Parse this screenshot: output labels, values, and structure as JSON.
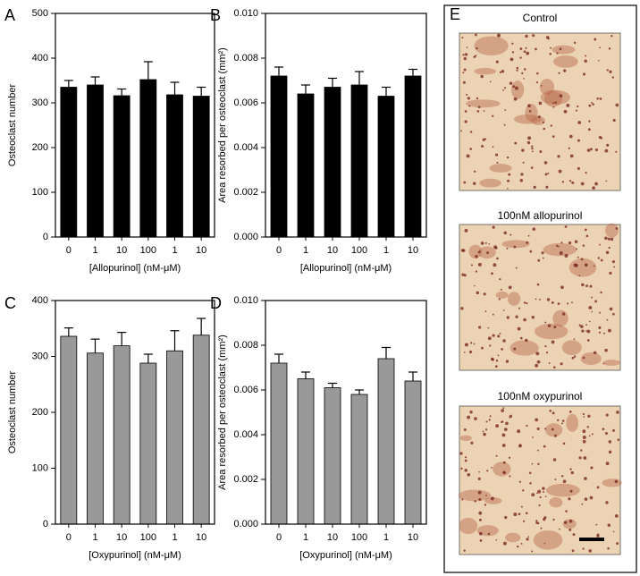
{
  "chart_data": [
    {
      "type": "bar",
      "panel": "A",
      "ylabel": "Osteoclast number",
      "xlabel": "[Allopurinol] (nM-μM)",
      "categories": [
        "0",
        "1",
        "10",
        "100",
        "1",
        "10"
      ],
      "values": [
        335,
        340,
        316,
        352,
        318,
        315
      ],
      "errors": [
        15,
        18,
        15,
        40,
        28,
        20
      ],
      "color": "#000000",
      "ylim": [
        0,
        500
      ],
      "yticks": [
        0,
        100,
        200,
        300,
        400,
        500
      ]
    },
    {
      "type": "bar",
      "panel": "B",
      "ylabel": "Area resorbed per osteoclast (mm²)",
      "xlabel": "[Allopurinol] (nM-μM)",
      "categories": [
        "0",
        "1",
        "10",
        "100",
        "1",
        "10"
      ],
      "values": [
        0.0072,
        0.0064,
        0.0067,
        0.0068,
        0.0063,
        0.0072
      ],
      "errors": [
        0.0004,
        0.0004,
        0.0004,
        0.0006,
        0.0004,
        0.0003
      ],
      "color": "#000000",
      "ylim": [
        0,
        0.01
      ],
      "yticks": [
        {
          "value": 0,
          "label": "0.000"
        },
        {
          "value": 0.002,
          "label": "0.002"
        },
        {
          "value": 0.004,
          "label": "0.004"
        },
        {
          "value": 0.006,
          "label": "0.006"
        },
        {
          "value": 0.008,
          "label": "0.008"
        },
        {
          "value": 0.01,
          "label": "0.010"
        }
      ]
    },
    {
      "type": "bar",
      "panel": "C",
      "ylabel": "Osteoclast number",
      "xlabel": "[Oxypurinol] (nM-μM)",
      "categories": [
        "0",
        "1",
        "10",
        "100",
        "1",
        "10"
      ],
      "values": [
        336,
        306,
        319,
        288,
        310,
        338
      ],
      "errors": [
        15,
        25,
        24,
        16,
        36,
        30
      ],
      "color": "#999999",
      "ylim": [
        0,
        400
      ],
      "yticks": [
        0,
        100,
        200,
        300,
        400
      ]
    },
    {
      "type": "bar",
      "panel": "D",
      "ylabel": "Area resorbed per osteoclast (mm²)",
      "xlabel": "[Oxypurinol] (nM-μM)",
      "categories": [
        "0",
        "1",
        "10",
        "100",
        "1",
        "10"
      ],
      "values": [
        0.0072,
        0.0065,
        0.0061,
        0.0058,
        0.0074,
        0.0064
      ],
      "errors": [
        0.0004,
        0.0003,
        0.0002,
        0.0002,
        0.0005,
        0.0004
      ],
      "color": "#999999",
      "ylim": [
        0,
        0.01
      ],
      "yticks": [
        {
          "value": 0,
          "label": "0.000"
        },
        {
          "value": 0.002,
          "label": "0.002"
        },
        {
          "value": 0.004,
          "label": "0.004"
        },
        {
          "value": 0.006,
          "label": "0.006"
        },
        {
          "value": 0.008,
          "label": "0.008"
        },
        {
          "value": 0.01,
          "label": "0.010"
        }
      ]
    }
  ],
  "panel_e": {
    "label": "E",
    "images": [
      {
        "caption": "Control"
      },
      {
        "caption": "100nM allopurinol"
      },
      {
        "caption": "100nM oxypurinol"
      }
    ]
  }
}
